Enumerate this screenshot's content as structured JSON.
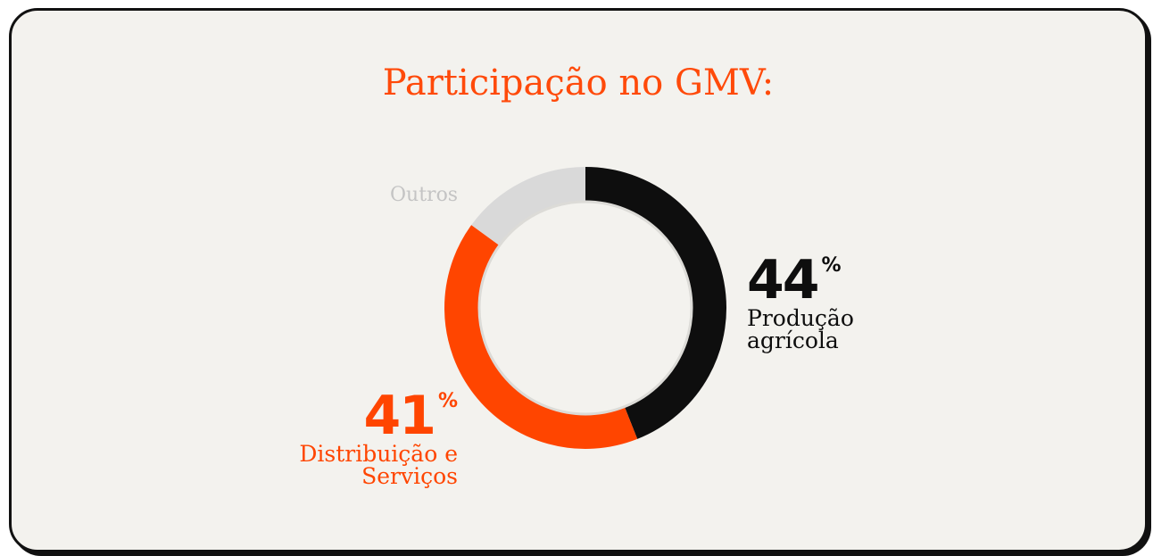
{
  "chart_data": {
    "type": "donut",
    "title": "Participação no GMV:",
    "categories": [
      "Produção agrícola",
      "Distribuição e Serviços",
      "Outros"
    ],
    "values": [
      44,
      41,
      15
    ],
    "colors": [
      "#0e0e0e",
      "#ff4500",
      "#d9d9d9"
    ],
    "unit": "%"
  }
}
